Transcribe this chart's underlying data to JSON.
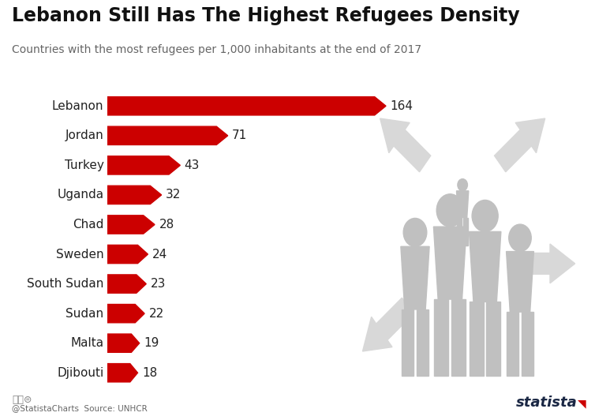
{
  "title": "Lebanon Still Has The Highest Refugees Density",
  "subtitle": "Countries with the most refugees per 1,000 inhabitants at the end of 2017",
  "source": "Source: UNHCR",
  "credit": "@StatistaCharts",
  "countries": [
    "Lebanon",
    "Jordan",
    "Turkey",
    "Uganda",
    "Chad",
    "Sweden",
    "South Sudan",
    "Sudan",
    "Malta",
    "Djibouti"
  ],
  "values": [
    164,
    71,
    43,
    32,
    28,
    24,
    23,
    22,
    19,
    18
  ],
  "bar_color": "#cc0000",
  "bar_height": 0.62,
  "bg_color": "#ffffff",
  "title_fontsize": 17,
  "subtitle_fontsize": 10,
  "label_fontsize": 11,
  "value_fontsize": 11,
  "xlim_max": 175,
  "text_color": "#222222",
  "footer_color": "#666666",
  "silhouette_color": "#c0c0c0",
  "arrow_color": "#d8d8d8",
  "arrow_color2": "#e2e2e2"
}
